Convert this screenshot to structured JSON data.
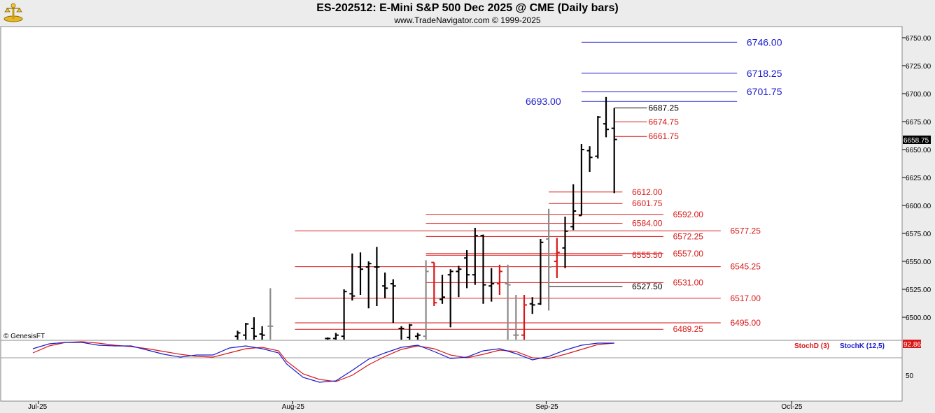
{
  "header": {
    "title": "ES-202512:  E-Mini S&P 500 Dec 2025 @ CME  (Daily bars)",
    "subtitle": "www.TradeNavigator.com © 1999-2025"
  },
  "watermark": "© GenesisFT",
  "indicator_labels": {
    "stochd": "StochD (3)",
    "stochk": "StochK (12,5)",
    "value": "92.86"
  },
  "last_price": "6658.75",
  "colors": {
    "blue": "#1a1acd",
    "red": "#d81818",
    "black": "#000000",
    "gray": "#8a8a8a",
    "stochd": "#d81818",
    "stochk": "#1a1acd"
  },
  "chart_data": [
    {
      "type": "ohlc",
      "ylim": [
        6480,
        6760
      ],
      "y_ticks": [
        "6750.00",
        "6725.00",
        "6700.00",
        "6675.00",
        "6650.00",
        "6625.00",
        "6600.00",
        "6575.00",
        "6550.00",
        "6525.00",
        "6500.00"
      ],
      "x_ticks": [
        {
          "label": "Jul-25",
          "day": 0
        },
        {
          "label": "Aug-25",
          "day": 31
        },
        {
          "label": "Sep-25",
          "day": 62
        },
        {
          "label": "Oct-25",
          "day": 92
        }
      ],
      "bars": [
        {
          "day": 25,
          "o": 6483,
          "h": 6488,
          "l": 6480,
          "c": 6486,
          "col": "black"
        },
        {
          "day": 26,
          "o": 6484,
          "h": 6495,
          "l": 6480,
          "c": 6494,
          "col": "black"
        },
        {
          "day": 27,
          "o": 6490,
          "h": 6500,
          "l": 6480,
          "c": 6483,
          "col": "black"
        },
        {
          "day": 28,
          "o": 6485,
          "h": 6492,
          "l": 6480,
          "c": 6484,
          "col": "black"
        },
        {
          "day": 29,
          "o": 6492,
          "h": 6526,
          "l": 6480,
          "c": 6492,
          "col": "gray"
        },
        {
          "day": 36,
          "o": 6481,
          "h": 6482,
          "l": 6480,
          "c": 6481,
          "col": "black"
        },
        {
          "day": 37,
          "o": 6481,
          "h": 6486,
          "l": 6480,
          "c": 6484,
          "col": "black"
        },
        {
          "day": 38,
          "o": 6483,
          "h": 6525,
          "l": 6480,
          "c": 6523,
          "col": "black"
        },
        {
          "day": 39,
          "o": 6521,
          "h": 6557,
          "l": 6515,
          "c": 6519,
          "col": "black"
        },
        {
          "day": 40,
          "o": 6545,
          "h": 6558,
          "l": 6520,
          "c": 6543,
          "col": "black"
        },
        {
          "day": 41,
          "o": 6545,
          "h": 6550,
          "l": 6508,
          "c": 6548,
          "col": "black"
        },
        {
          "day": 42,
          "o": 6545,
          "h": 6563,
          "l": 6510,
          "c": 6545,
          "col": "black"
        },
        {
          "day": 43,
          "o": 6528,
          "h": 6540,
          "l": 6517,
          "c": 6526,
          "col": "black"
        },
        {
          "day": 44,
          "o": 6530,
          "h": 6534,
          "l": 6495,
          "c": 6528,
          "col": "black"
        },
        {
          "day": 45,
          "o": 6490,
          "h": 6492,
          "l": 6480,
          "c": 6490,
          "col": "black"
        },
        {
          "day": 46,
          "o": 6482,
          "h": 6494,
          "l": 6480,
          "c": 6493,
          "col": "black"
        },
        {
          "day": 47,
          "o": 6483,
          "h": 6486,
          "l": 6480,
          "c": 6484,
          "col": "black"
        },
        {
          "day": 48,
          "o": 6483,
          "h": 6551,
          "l": 6480,
          "c": 6541,
          "col": "gray"
        },
        {
          "day": 49,
          "o": 6549,
          "h": 6549,
          "l": 6510,
          "c": 6513,
          "col": "red"
        },
        {
          "day": 50,
          "o": 6516,
          "h": 6538,
          "l": 6512,
          "c": 6518,
          "col": "black"
        },
        {
          "day": 51,
          "o": 6538,
          "h": 6543,
          "l": 6491,
          "c": 6541,
          "col": "black"
        },
        {
          "day": 52,
          "o": 6541,
          "h": 6546,
          "l": 6518,
          "c": 6543,
          "col": "black"
        },
        {
          "day": 53,
          "o": 6553,
          "h": 6560,
          "l": 6526,
          "c": 6538,
          "col": "black"
        },
        {
          "day": 54,
          "o": 6538,
          "h": 6580,
          "l": 6529,
          "c": 6573,
          "col": "black"
        },
        {
          "day": 55,
          "o": 6573,
          "h": 6574,
          "l": 6512,
          "c": 6529,
          "col": "black"
        },
        {
          "day": 56,
          "o": 6528,
          "h": 6544,
          "l": 6514,
          "c": 6530,
          "col": "black"
        },
        {
          "day": 57,
          "o": 6530,
          "h": 6547,
          "l": 6520,
          "c": 6541,
          "col": "red"
        },
        {
          "day": 58,
          "o": 6530,
          "h": 6547,
          "l": 6480,
          "c": 6529,
          "col": "gray"
        },
        {
          "day": 59,
          "o": 6484,
          "h": 6520,
          "l": 6480,
          "c": 6484,
          "col": "gray"
        },
        {
          "day": 60,
          "o": 6484,
          "h": 6520,
          "l": 6480,
          "c": 6511,
          "col": "red"
        },
        {
          "day": 61,
          "o": 6512,
          "h": 6518,
          "l": 6503,
          "c": 6511,
          "col": "black"
        },
        {
          "day": 62,
          "o": 6512,
          "h": 6570,
          "l": 6511,
          "c": 6567,
          "col": "black"
        },
        {
          "day": 63,
          "o": 6570,
          "h": 6597,
          "l": 6506,
          "c": 6545,
          "col": "gray"
        },
        {
          "day": 64,
          "o": 6550,
          "h": 6571,
          "l": 6535,
          "c": 6558,
          "col": "red"
        },
        {
          "day": 65,
          "o": 6562,
          "h": 6590,
          "l": 6544,
          "c": 6577,
          "col": "black"
        },
        {
          "day": 66,
          "o": 6581,
          "h": 6619,
          "l": 6578,
          "c": 6595,
          "col": "black"
        },
        {
          "day": 67,
          "o": 6591,
          "h": 6655,
          "l": 6591,
          "c": 6650,
          "col": "black"
        },
        {
          "day": 68,
          "o": 6649,
          "h": 6653,
          "l": 6630,
          "c": 6643,
          "col": "black"
        },
        {
          "day": 69,
          "o": 6644,
          "h": 6680,
          "l": 6642,
          "c": 6679,
          "col": "black"
        },
        {
          "day": 70,
          "o": 6673,
          "h": 6697,
          "l": 6661,
          "c": 6668,
          "col": "black"
        },
        {
          "day": 71,
          "o": 6669,
          "h": 6687,
          "l": 6611,
          "c": 6659,
          "col": "black"
        }
      ],
      "levels": [
        {
          "value": 6746.0,
          "label": "6746.00",
          "color": "blue",
          "from_day": 67,
          "to_day": 86,
          "label_day": 87,
          "size": "big"
        },
        {
          "value": 6718.25,
          "label": "6718.25",
          "color": "blue",
          "from_day": 67,
          "to_day": 86,
          "label_day": 87,
          "size": "big"
        },
        {
          "value": 6701.75,
          "label": "6701.75",
          "color": "blue",
          "from_day": 67,
          "to_day": 86,
          "label_day": 87,
          "size": "big"
        },
        {
          "value": 6693.0,
          "label": "6693.00",
          "color": "blue",
          "from_day": 67,
          "to_day": 86,
          "label_day": 60,
          "size": "big"
        },
        {
          "value": 6687.25,
          "label": "6687.25",
          "color": "black",
          "from_day": 71,
          "to_day": 75,
          "label_day": 75
        },
        {
          "value": 6674.75,
          "label": "6674.75",
          "color": "red",
          "from_day": 71,
          "to_day": 75,
          "label_day": 75
        },
        {
          "value": 6661.75,
          "label": "6661.75",
          "color": "red",
          "from_day": 71,
          "to_day": 75,
          "label_day": 75
        },
        {
          "value": 6612.0,
          "label": "6612.00",
          "color": "red",
          "from_day": 63,
          "to_day": 72,
          "label_day": 73
        },
        {
          "value": 6601.75,
          "label": "6601.75",
          "color": "red",
          "from_day": 63,
          "to_day": 72,
          "label_day": 73
        },
        {
          "value": 6592.0,
          "label": "6592.00",
          "color": "red",
          "from_day": 48,
          "to_day": 77,
          "label_day": 78
        },
        {
          "value": 6584.0,
          "label": "6584.00",
          "color": "red",
          "from_day": 48,
          "to_day": 72,
          "label_day": 73
        },
        {
          "value": 6577.25,
          "label": "6577.25",
          "color": "red",
          "from_day": 32,
          "to_day": 84,
          "label_day": 85
        },
        {
          "value": 6572.25,
          "label": "6572.25",
          "color": "red",
          "from_day": 48,
          "to_day": 77,
          "label_day": 78
        },
        {
          "value": 6557.0,
          "label": "6557.00",
          "color": "red",
          "from_day": 48,
          "to_day": 77,
          "label_day": 78
        },
        {
          "value": 6555.5,
          "label": "6555.50",
          "color": "red",
          "from_day": 48,
          "to_day": 72,
          "label_day": 73
        },
        {
          "value": 6545.25,
          "label": "6545.25",
          "color": "red",
          "from_day": 32,
          "to_day": 84,
          "label_day": 85
        },
        {
          "value": 6531.0,
          "label": "6531.00",
          "color": "red",
          "from_day": 48,
          "to_day": 77,
          "label_day": 78
        },
        {
          "value": 6527.5,
          "label": "6527.50",
          "color": "black",
          "from_day": 63,
          "to_day": 72,
          "label_day": 73
        },
        {
          "value": 6517.0,
          "label": "6517.00",
          "color": "red",
          "from_day": 32,
          "to_day": 84,
          "label_day": 85
        },
        {
          "value": 6495.0,
          "label": "6495.00",
          "color": "red",
          "from_day": 32,
          "to_day": 84,
          "label_day": 85
        },
        {
          "value": 6489.25,
          "label": "6489.25",
          "color": "red",
          "from_day": 32,
          "to_day": 77,
          "label_day": 78
        }
      ]
    },
    {
      "type": "line",
      "title": "StochD (3) / StochK (12,5)",
      "ylim": [
        20,
        100
      ],
      "y_ticks": [
        "50"
      ],
      "series": [
        {
          "name": "StochD (3)",
          "color": "red",
          "points": [
            [
              0,
              82
            ],
            [
              2,
              92
            ],
            [
              4,
              97
            ],
            [
              6,
              98
            ],
            [
              8,
              96
            ],
            [
              10,
              93
            ],
            [
              12,
              91
            ],
            [
              14,
              88
            ],
            [
              16,
              84
            ],
            [
              18,
              80
            ],
            [
              20,
              77
            ],
            [
              22,
              76
            ],
            [
              24,
              82
            ],
            [
              26,
              88
            ],
            [
              28,
              90
            ],
            [
              30,
              85
            ],
            [
              31,
              70
            ],
            [
              33,
              52
            ],
            [
              35,
              44
            ],
            [
              37,
              41
            ],
            [
              39,
              50
            ],
            [
              41,
              65
            ],
            [
              43,
              77
            ],
            [
              45,
              87
            ],
            [
              47,
              92
            ],
            [
              49,
              88
            ],
            [
              51,
              79
            ],
            [
              53,
              75
            ],
            [
              55,
              80
            ],
            [
              57,
              86
            ],
            [
              59,
              84
            ],
            [
              61,
              75
            ],
            [
              63,
              74
            ],
            [
              65,
              80
            ],
            [
              67,
              87
            ],
            [
              69,
              94
            ],
            [
              71,
              96
            ]
          ]
        },
        {
          "name": "StochK (12,5)",
          "color": "blue",
          "points": [
            [
              0,
              88
            ],
            [
              2,
              95
            ],
            [
              4,
              97
            ],
            [
              6,
              97
            ],
            [
              8,
              93
            ],
            [
              10,
              92
            ],
            [
              12,
              92
            ],
            [
              14,
              86
            ],
            [
              16,
              80
            ],
            [
              18,
              76
            ],
            [
              20,
              79
            ],
            [
              22,
              79
            ],
            [
              24,
              89
            ],
            [
              26,
              92
            ],
            [
              28,
              88
            ],
            [
              30,
              82
            ],
            [
              31,
              66
            ],
            [
              33,
              47
            ],
            [
              35,
              40
            ],
            [
              37,
              42
            ],
            [
              39,
              57
            ],
            [
              41,
              73
            ],
            [
              43,
              82
            ],
            [
              45,
              90
            ],
            [
              47,
              93
            ],
            [
              49,
              84
            ],
            [
              51,
              74
            ],
            [
              53,
              76
            ],
            [
              55,
              85
            ],
            [
              57,
              88
            ],
            [
              59,
              81
            ],
            [
              61,
              72
            ],
            [
              63,
              77
            ],
            [
              65,
              86
            ],
            [
              67,
              93
            ],
            [
              69,
              96
            ],
            [
              71,
              96
            ]
          ]
        }
      ]
    }
  ]
}
